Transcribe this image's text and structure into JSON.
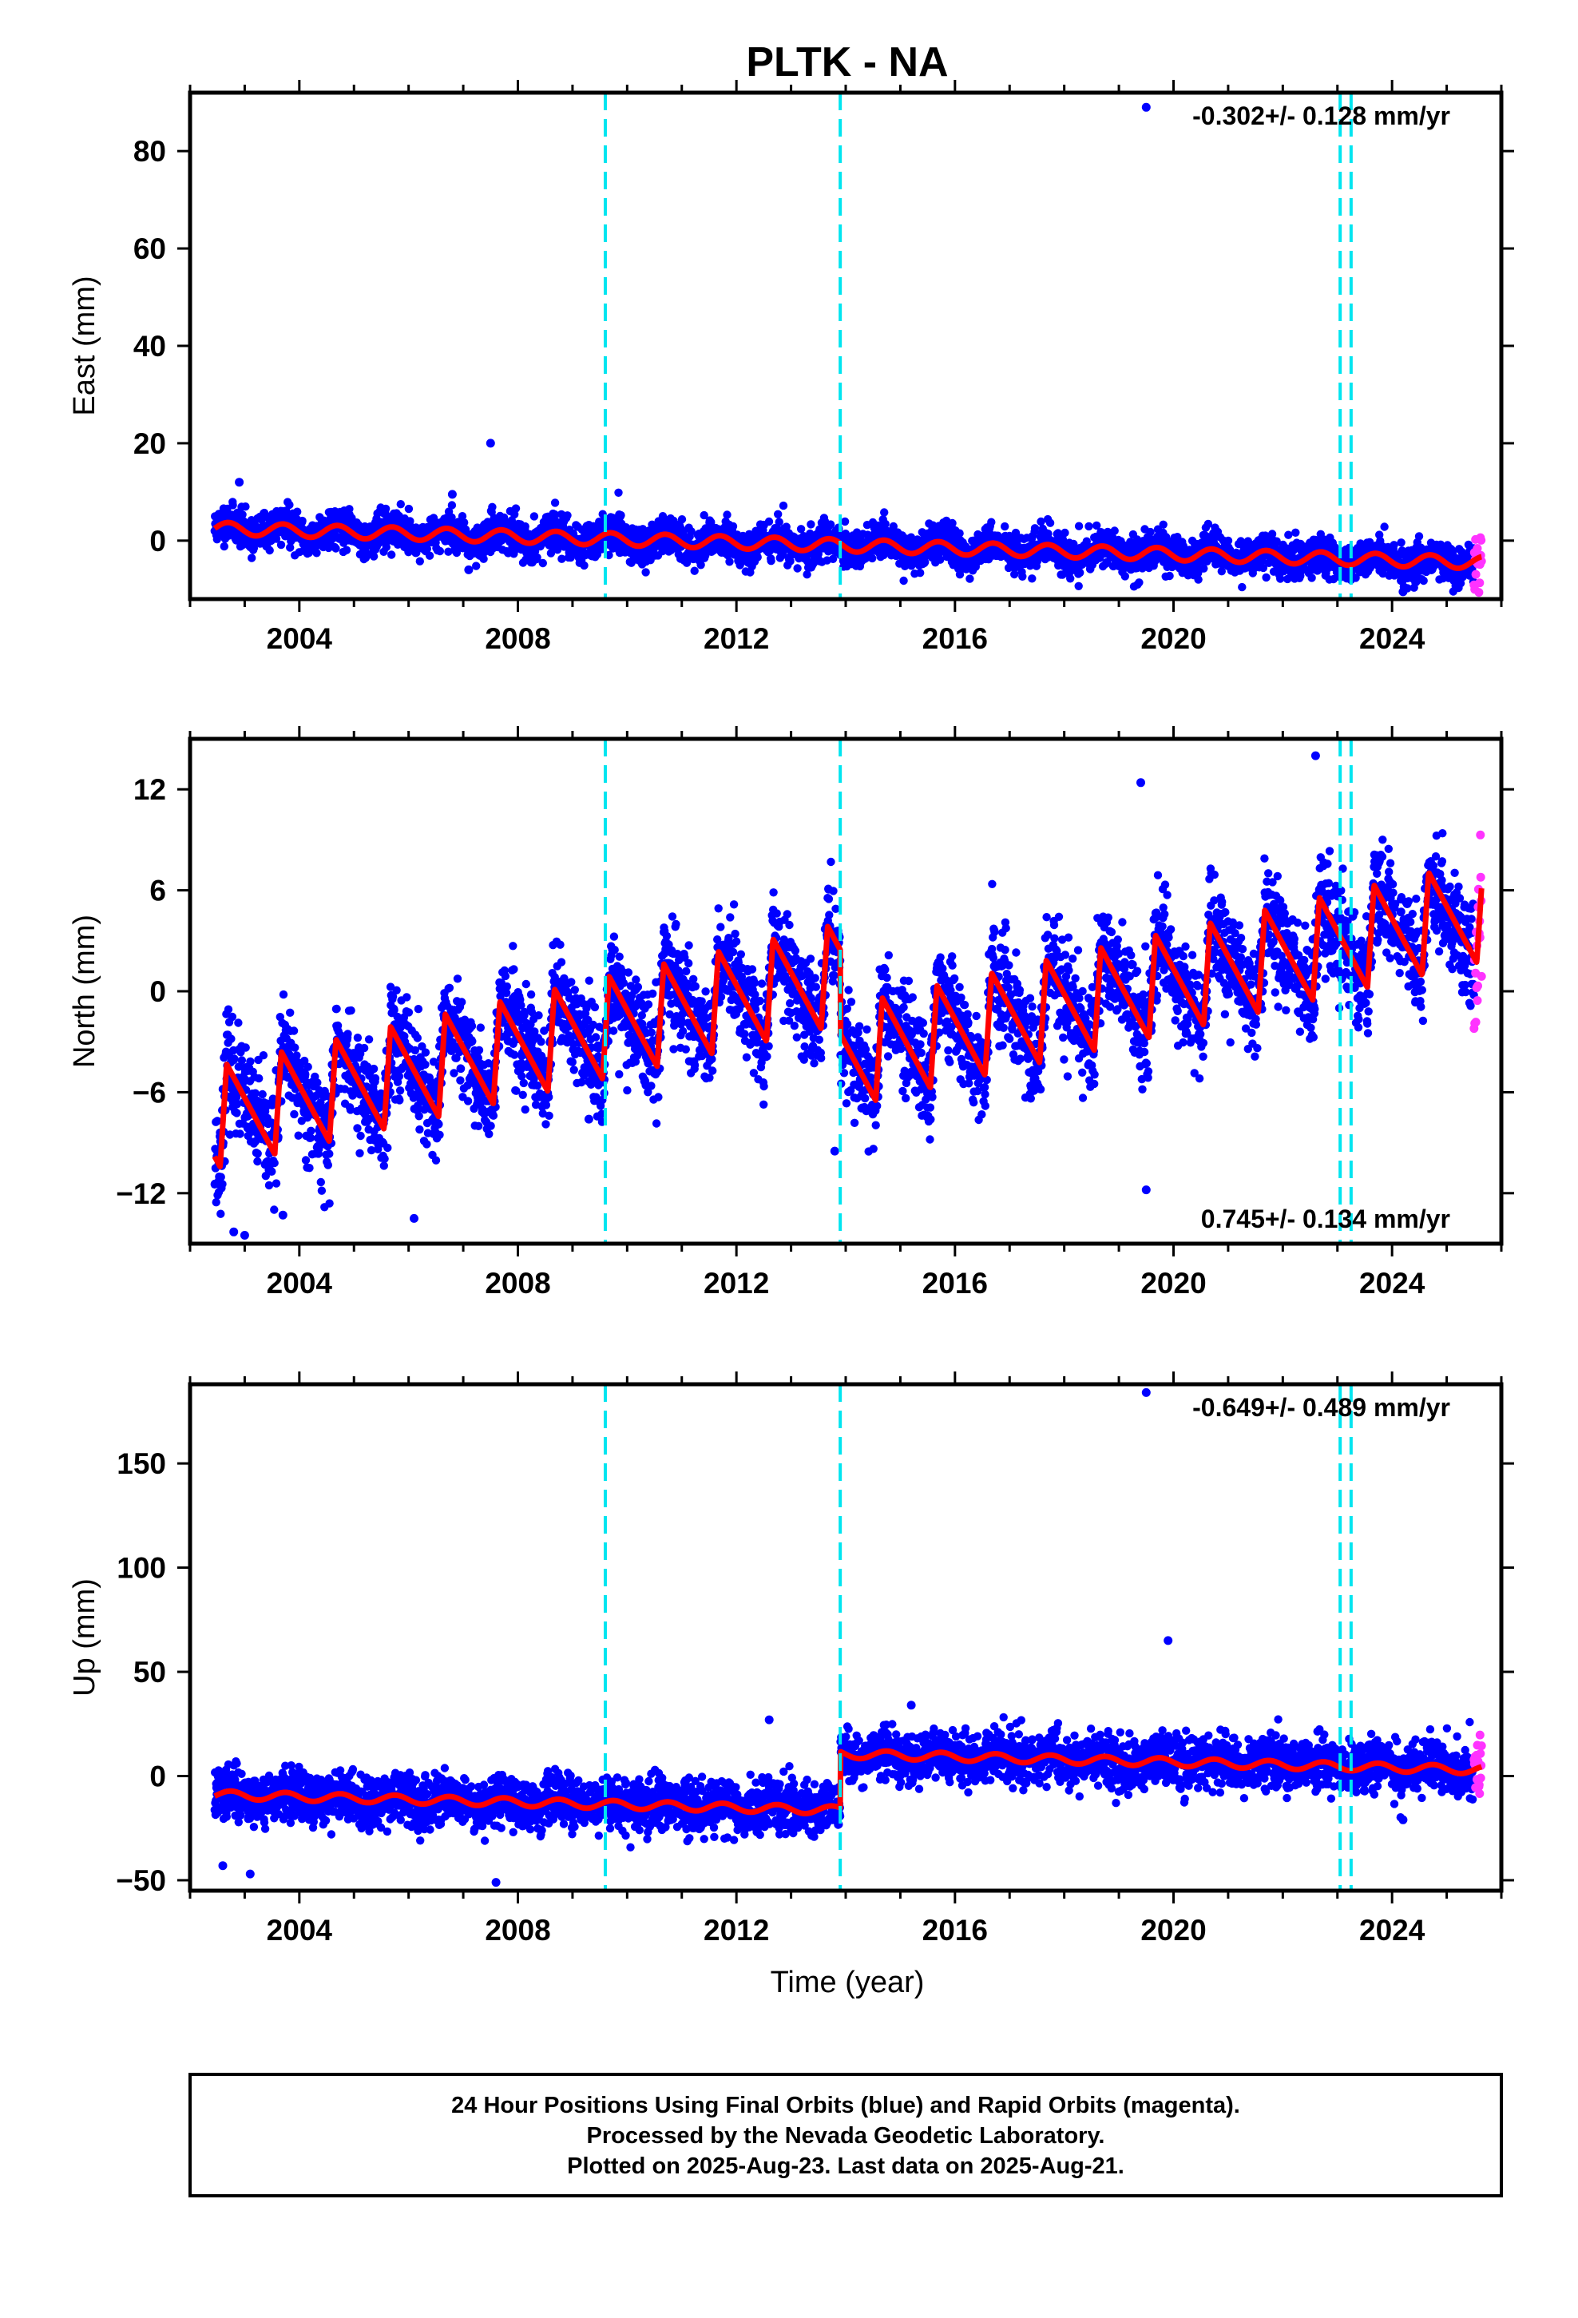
{
  "chart_data": {
    "type": "scatter",
    "title": "PLTK - NA",
    "xlabel": "Time (year)",
    "xlim": [
      2002.0,
      2026.0
    ],
    "x_ticks": [
      2004,
      2008,
      2012,
      2016,
      2020,
      2024
    ],
    "x_tick_labels": [
      "2004",
      "2008",
      "2012",
      "2016",
      "2020",
      "2024"
    ],
    "event_lines": [
      2009.6,
      2013.9,
      2023.05,
      2023.25
    ],
    "event_line_color": "#00e5f0",
    "colors": {
      "final": "#0000ff",
      "rapid": "#ff33ff",
      "model": "#ff0000"
    },
    "panels": [
      {
        "component": "east",
        "ylabel": "East (mm)",
        "ylim": [
          -12,
          92
        ],
        "y_ticks": [
          0,
          20,
          40,
          60,
          80
        ],
        "rate_text": "-0.302+/- 0.128 mm/yr",
        "rate_position": "top-right",
        "model": {
          "trend_start": 2.5,
          "rate": -0.302,
          "amplitude": 1.3,
          "phase": 0.45,
          "offsets": [],
          "noise": 1.9,
          "seed": 11
        },
        "outliers": [
          [
            2002.9,
            12
          ],
          [
            2006.8,
            9.5
          ],
          [
            2007.5,
            20
          ],
          [
            2019.5,
            89
          ],
          [
            2024.2,
            -10.5
          ],
          [
            2007.1,
            -6
          ]
        ]
      },
      {
        "component": "north",
        "ylabel": "North (mm)",
        "ylim": [
          -15,
          15
        ],
        "y_ticks": [
          -12,
          -6,
          0,
          6,
          12
        ],
        "y_tick_labels": [
          "−12",
          "−6",
          "0",
          "6",
          "12"
        ],
        "rate_text": "0.745+/- 0.134 mm/yr",
        "rate_position": "bottom-right",
        "model": {
          "trend_start": -7.5,
          "rate": 0.745,
          "amplitude": 3.0,
          "phase": 0.6,
          "offsets": [
            [
              2013.9,
              -5.0
            ]
          ],
          "noise": 1.5,
          "seed": 23
        },
        "outliers": [
          [
            2002.8,
            -14.3
          ],
          [
            2003.0,
            -14.5
          ],
          [
            2003.7,
            -13.3
          ],
          [
            2006.1,
            -13.5
          ],
          [
            2019.5,
            -11.8
          ],
          [
            2013.8,
            -9.5
          ],
          [
            2022.6,
            14
          ],
          [
            2019.4,
            12.4
          ],
          [
            2009.3,
            -7.6
          ]
        ]
      },
      {
        "component": "up",
        "ylabel": "Up (mm)",
        "ylim": [
          -55,
          188
        ],
        "y_ticks": [
          -50,
          0,
          50,
          100,
          150
        ],
        "y_tick_labels": [
          "−50",
          "0",
          "50",
          "100",
          "150"
        ],
        "rate_text": "-0.649+/- 0.489 mm/yr",
        "rate_position": "top-right",
        "model": {
          "trend_start": -9.0,
          "rate": -0.649,
          "amplitude": 2.0,
          "phase": 0.5,
          "offsets": [
            [
              2013.9,
              27.0
            ]
          ],
          "noise": 6.0,
          "seed": 37
        },
        "outliers": [
          [
            2002.6,
            -43
          ],
          [
            2003.1,
            -47
          ],
          [
            2007.6,
            -51
          ],
          [
            2019.5,
            184
          ],
          [
            2019.9,
            65
          ],
          [
            2024.2,
            -21
          ],
          [
            2015.2,
            34
          ],
          [
            2012.6,
            27
          ]
        ]
      }
    ],
    "data_span": {
      "final_start": 2002.45,
      "final_end": 2025.5,
      "rapid_start": 2025.5,
      "rapid_end": 2025.64
    }
  },
  "footer": {
    "line1": "24 Hour Positions Using Final Orbits (blue) and Rapid Orbits (magenta).",
    "line2": "Processed by the Nevada Geodetic Laboratory.",
    "line3": "Plotted on 2025-Aug-23. Last data on 2025-Aug-21."
  }
}
